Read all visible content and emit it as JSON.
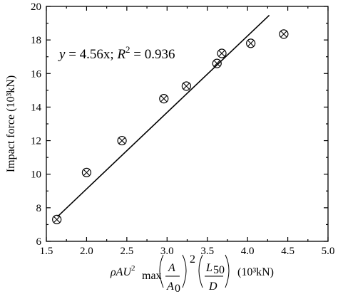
{
  "chart_data": {
    "type": "scatter",
    "xlim": [
      1.5,
      5.0
    ],
    "ylim": [
      6,
      20
    ],
    "x_ticks": [
      "1.5",
      "2.0",
      "2.5",
      "3.0",
      "3.5",
      "4.0",
      "4.5",
      "5.0"
    ],
    "y_ticks": [
      "6",
      "8",
      "10",
      "12",
      "14",
      "16",
      "18",
      "20"
    ],
    "ylabel": "Impact force (10³kN)",
    "xlabel": {
      "prefix": "ρAU",
      "sup": "2",
      "sub": "max",
      "frac1_num": "A",
      "frac1_den": "A",
      "frac1_den_sub": "0",
      "frac1_exp": "2",
      "frac2_num": "L",
      "frac2_num_sub": "50",
      "frac2_den": "D",
      "unit": "(10³kN)"
    },
    "equation": {
      "lhs": "y",
      "rhs": " = 4.56x; ",
      "r2_symbol": "R",
      "r2_sup": "2",
      "r2_value": " = 0.936"
    },
    "points": [
      {
        "x": 1.63,
        "y": 7.3
      },
      {
        "x": 2.0,
        "y": 10.1
      },
      {
        "x": 2.44,
        "y": 12.0
      },
      {
        "x": 2.96,
        "y": 14.5
      },
      {
        "x": 3.24,
        "y": 15.25
      },
      {
        "x": 3.62,
        "y": 16.6
      },
      {
        "x": 3.68,
        "y": 17.2
      },
      {
        "x": 4.04,
        "y": 17.8
      },
      {
        "x": 4.45,
        "y": 18.35
      }
    ],
    "fit_line": {
      "slope": 4.56,
      "x_range": [
        1.64,
        4.27
      ]
    },
    "grid": false,
    "marker": "circled-x"
  }
}
